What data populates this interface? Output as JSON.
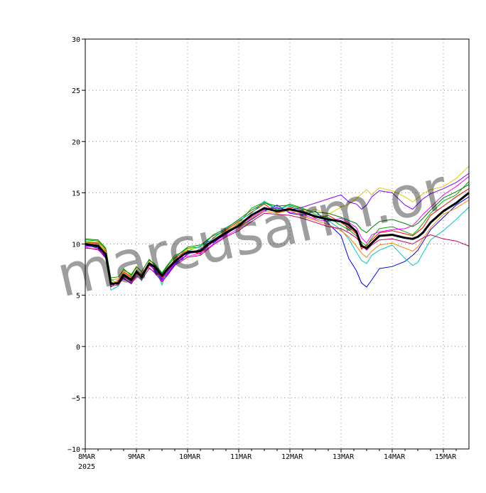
{
  "chart_data": {
    "type": "line",
    "xlabel": "",
    "ylabel": "",
    "ylim": [
      -10,
      30
    ],
    "yticks": [
      -10,
      -5,
      0,
      5,
      10,
      15,
      20,
      25,
      30
    ],
    "x_range_days": [
      0,
      7.5
    ],
    "xticks": [
      {
        "day": 0,
        "label": "8MAR",
        "sub": "2025"
      },
      {
        "day": 1,
        "label": "9MAR",
        "sub": ""
      },
      {
        "day": 2,
        "label": "10MAR",
        "sub": ""
      },
      {
        "day": 3,
        "label": "11MAR",
        "sub": ""
      },
      {
        "day": 4,
        "label": "12MAR",
        "sub": ""
      },
      {
        "day": 5,
        "label": "13MAR",
        "sub": ""
      },
      {
        "day": 6,
        "label": "14MAR",
        "sub": ""
      },
      {
        "day": 7,
        "label": "15MAR",
        "sub": ""
      }
    ],
    "grid": true,
    "watermark": "marcusarm.or",
    "mean_series": {
      "color": "#000000",
      "x": [
        0,
        0.25,
        0.4,
        0.5,
        0.65,
        0.75,
        0.9,
        1.0,
        1.1,
        1.25,
        1.35,
        1.5,
        1.6,
        1.75,
        1.9,
        2.0,
        2.25,
        2.4,
        2.5,
        2.75,
        3.0,
        3.25,
        3.5,
        3.75,
        4.0,
        4.25,
        4.5,
        4.75,
        5.0,
        5.15,
        5.3,
        5.4,
        5.5,
        5.6,
        5.75,
        6.0,
        6.25,
        6.4,
        6.5,
        6.6,
        6.75,
        7.0,
        7.25,
        7.5
      ],
      "y": [
        10.0,
        9.8,
        9.0,
        6.1,
        6.2,
        7.0,
        6.5,
        7.3,
        6.8,
        8.1,
        7.8,
        6.9,
        7.5,
        8.3,
        8.9,
        9.2,
        9.3,
        10.0,
        10.3,
        11.1,
        11.8,
        12.8,
        13.5,
        13.2,
        13.4,
        13.1,
        12.7,
        12.4,
        12.2,
        11.9,
        11.2,
        9.8,
        9.6,
        10.1,
        10.8,
        10.9,
        10.6,
        10.5,
        10.7,
        11.1,
        12.1,
        13.2,
        14.0,
        15.0
      ]
    },
    "series_x": [
      0,
      0.25,
      0.4,
      0.5,
      0.65,
      0.75,
      0.9,
      1.0,
      1.1,
      1.25,
      1.35,
      1.5,
      1.6,
      1.75,
      1.9,
      2.0,
      2.25,
      2.4,
      2.5,
      2.75,
      3.0,
      3.25,
      3.5,
      3.75,
      4.0,
      4.25,
      4.5,
      4.75,
      5.0,
      5.15,
      5.3,
      5.4,
      5.5,
      5.6,
      5.75,
      6.0,
      6.25,
      6.4,
      6.5,
      6.6,
      6.75,
      7.0,
      7.25,
      7.5
    ],
    "series": [
      {
        "color": "#ff0000",
        "y": [
          10.2,
          10.0,
          9.3,
          6.3,
          6.0,
          7.3,
          6.8,
          7.1,
          6.6,
          7.9,
          7.6,
          6.7,
          7.3,
          8.6,
          9.1,
          9.4,
          9.0,
          9.9,
          10.6,
          11.4,
          12.2,
          13.1,
          13.9,
          13.0,
          13.6,
          13.3,
          12.5,
          12.8,
          12.1,
          11.6,
          11.0,
          9.5,
          9.9,
          10.4,
          11.1,
          11.3,
          11.0,
          10.8,
          11.2,
          11.6,
          12.8,
          13.7,
          14.6,
          15.4
        ]
      },
      {
        "color": "#0000ff",
        "y": [
          9.9,
          9.6,
          8.7,
          5.8,
          6.4,
          6.6,
          6.2,
          7.5,
          7.0,
          8.2,
          7.4,
          6.5,
          7.0,
          8.0,
          8.6,
          9.0,
          9.5,
          10.3,
          10.1,
          11.0,
          11.7,
          12.4,
          13.2,
          13.8,
          13.0,
          12.8,
          13.2,
          12.0,
          10.8,
          8.6,
          7.4,
          6.2,
          5.8,
          6.5,
          7.6,
          7.8,
          8.3,
          8.9,
          9.4,
          10.2,
          11.4,
          12.6,
          13.8,
          14.6
        ]
      },
      {
        "color": "#00b000",
        "y": [
          10.4,
          10.3,
          9.5,
          6.6,
          6.0,
          7.6,
          6.9,
          7.7,
          6.5,
          8.4,
          8.1,
          7.2,
          7.9,
          8.9,
          9.2,
          9.6,
          9.7,
          10.5,
          10.8,
          11.3,
          12.0,
          13.5,
          14.1,
          13.3,
          13.9,
          13.5,
          12.9,
          12.6,
          11.8,
          11.4,
          10.8,
          10.2,
          9.8,
          10.6,
          11.5,
          11.7,
          11.2,
          10.9,
          11.4,
          12.0,
          13.0,
          14.2,
          14.8,
          16.1
        ]
      },
      {
        "color": "#ff00ff",
        "y": [
          9.7,
          9.4,
          8.9,
          6.0,
          6.5,
          6.9,
          6.3,
          7.0,
          7.2,
          7.7,
          7.2,
          6.4,
          7.1,
          8.1,
          8.7,
          8.8,
          9.1,
          9.6,
          10.0,
          10.8,
          11.5,
          12.6,
          13.3,
          13.6,
          13.1,
          12.9,
          12.4,
          12.2,
          12.5,
          12.1,
          11.6,
          10.6,
          10.1,
          10.9,
          11.2,
          11.4,
          11.5,
          11.8,
          12.3,
          12.9,
          13.6,
          14.8,
          15.6,
          16.6
        ]
      },
      {
        "color": "#00c8c8",
        "y": [
          10.1,
          9.9,
          9.1,
          5.5,
          5.9,
          7.1,
          6.6,
          7.2,
          6.4,
          8.0,
          7.9,
          6.0,
          7.4,
          8.4,
          9.0,
          9.3,
          9.8,
          10.2,
          10.5,
          11.6,
          12.3,
          13.0,
          14.2,
          13.4,
          13.7,
          13.2,
          12.6,
          12.3,
          11.4,
          10.5,
          9.2,
          8.4,
          8.1,
          8.9,
          9.4,
          9.9,
          8.6,
          7.9,
          8.2,
          9.1,
          10.4,
          11.3,
          12.4,
          13.6
        ]
      },
      {
        "color": "#e6c800",
        "y": [
          10.3,
          10.1,
          9.2,
          6.4,
          6.3,
          7.4,
          7.1,
          7.6,
          6.9,
          8.3,
          7.7,
          6.8,
          7.6,
          8.5,
          8.8,
          9.5,
          9.6,
          10.1,
          10.4,
          11.2,
          12.1,
          12.7,
          13.6,
          13.1,
          13.5,
          13.0,
          13.4,
          12.9,
          13.6,
          13.9,
          14.4,
          14.9,
          15.3,
          14.8,
          15.5,
          15.2,
          14.6,
          14.1,
          14.5,
          14.9,
          15.3,
          15.6,
          16.4,
          17.6
        ]
      },
      {
        "color": "#8000ff",
        "y": [
          9.8,
          9.7,
          8.8,
          6.2,
          6.1,
          6.8,
          6.4,
          7.3,
          6.7,
          8.0,
          7.5,
          6.6,
          7.2,
          8.2,
          8.5,
          9.1,
          9.2,
          9.8,
          10.2,
          10.9,
          11.9,
          12.9,
          13.4,
          13.5,
          13.3,
          13.6,
          14.0,
          14.4,
          14.8,
          14.1,
          13.9,
          13.4,
          13.8,
          14.6,
          15.2,
          15.0,
          13.8,
          13.4,
          13.9,
          14.4,
          14.9,
          15.4,
          16.0,
          16.9
        ]
      },
      {
        "color": "#ff8000",
        "y": [
          10.0,
          10.2,
          9.4,
          6.5,
          6.6,
          7.2,
          6.7,
          7.4,
          7.1,
          8.2,
          7.9,
          7.0,
          7.7,
          8.4,
          8.8,
          9.2,
          9.4,
          9.9,
          10.4,
          11.3,
          11.6,
          12.5,
          13.2,
          13.0,
          13.3,
          12.7,
          12.3,
          11.9,
          11.3,
          10.7,
          9.8,
          9.1,
          8.7,
          9.3,
          9.9,
          10.1,
          9.6,
          9.3,
          9.7,
          10.5,
          11.6,
          12.9,
          13.5,
          14.3
        ]
      },
      {
        "color": "#008000",
        "y": [
          10.5,
          10.4,
          9.6,
          6.7,
          6.8,
          7.5,
          7.0,
          7.8,
          7.3,
          8.5,
          8.0,
          7.1,
          7.8,
          8.7,
          9.3,
          9.7,
          9.9,
          10.4,
          10.9,
          11.5,
          12.4,
          13.3,
          14.0,
          13.7,
          13.8,
          13.4,
          13.1,
          13.0,
          12.6,
          12.3,
          12.0,
          11.4,
          11.1,
          11.6,
          12.2,
          12.4,
          12.0,
          11.7,
          12.0,
          12.5,
          13.3,
          14.5,
          15.1,
          15.8
        ]
      },
      {
        "color": "#c80064",
        "y": [
          9.6,
          9.5,
          8.6,
          5.9,
          6.0,
          6.7,
          6.1,
          6.9,
          6.5,
          7.6,
          7.3,
          6.3,
          6.9,
          7.9,
          8.4,
          8.7,
          8.9,
          9.5,
          9.9,
          10.7,
          11.3,
          12.2,
          13.0,
          12.9,
          12.8,
          12.5,
          12.1,
          11.7,
          11.5,
          11.1,
          10.6,
          10.0,
          9.4,
          9.9,
          10.4,
          10.5,
          10.2,
          10.0,
          10.3,
          10.6,
          10.9,
          10.5,
          10.3,
          9.8
        ]
      },
      {
        "color": "#808000",
        "y": [
          10.2,
          10.1,
          9.0,
          6.0,
          6.3,
          7.0,
          6.6,
          7.2,
          6.8,
          8.1,
          7.7,
          6.8,
          7.5,
          8.3,
          8.9,
          9.2,
          9.3,
          10.0,
          10.3,
          11.1,
          11.8,
          12.8,
          13.5,
          13.2,
          13.4,
          13.1,
          12.7,
          12.4,
          12.2,
          11.9,
          11.2,
          9.8,
          9.6,
          10.1,
          10.8,
          10.9,
          10.6,
          10.5,
          10.7,
          11.1,
          12.1,
          13.2,
          14.0,
          15.0
        ]
      }
    ]
  }
}
